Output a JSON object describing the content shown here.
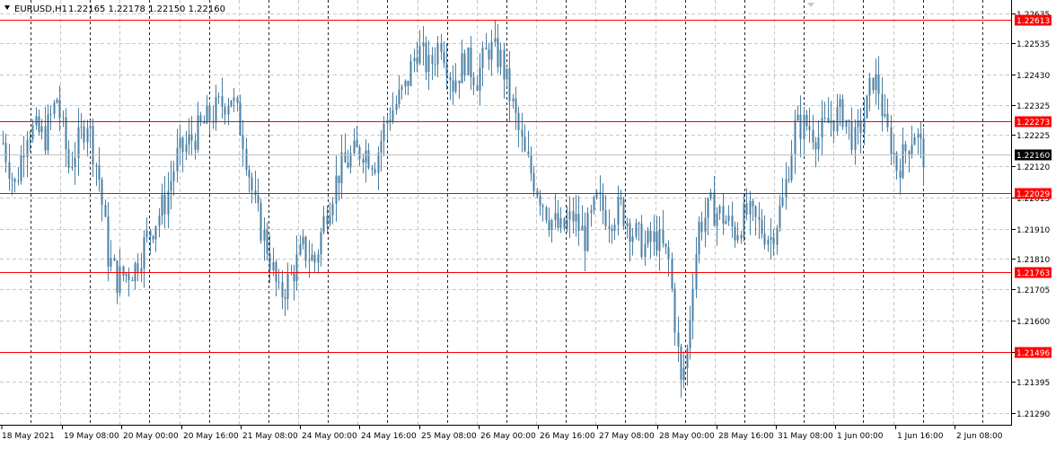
{
  "header": {
    "symbol": "EURUSD,H1",
    "ohlc": "1.22165 1.22178 1.22150 1.22160"
  },
  "chart_data": {
    "type": "candlestick",
    "symbol": "EURUSD",
    "timeframe": "H1",
    "ylim": [
      1.2125,
      1.2268
    ],
    "y_ticks": [
      "1.22635",
      "1.22535",
      "1.22430",
      "1.22325",
      "1.22225",
      "1.22120",
      "1.22015",
      "1.21910",
      "1.21810",
      "1.21705",
      "1.21600",
      "1.21495",
      "1.21395",
      "1.21290"
    ],
    "x_labels": [
      "18 May 2021",
      "19 May 08:00",
      "20 May 00:00",
      "20 May 16:00",
      "21 May 08:00",
      "24 May 00:00",
      "24 May 16:00",
      "25 May 08:00",
      "26 May 00:00",
      "26 May 16:00",
      "27 May 08:00",
      "28 May 00:00",
      "28 May 16:00",
      "31 May 08:00",
      "1 Jun 00:00",
      "1 Jun 16:00",
      "2 Jun 08:00"
    ],
    "horizontal_lines": [
      {
        "label": "1.22613",
        "value": 1.22613,
        "color": "#ff0000"
      },
      {
        "label": "1.22273",
        "value": 1.22273,
        "color": "#ff0000"
      },
      {
        "label": "1.22029",
        "value": 1.22029,
        "color": "#ff0000"
      },
      {
        "label": "1.21763",
        "value": 1.21763,
        "color": "#ff0000"
      },
      {
        "label": "1.21496",
        "value": 1.21496,
        "color": "#ff0000"
      }
    ],
    "current_price": {
      "label": "1.22160",
      "value": 1.2216
    },
    "candle_color": "#4a7fa3",
    "close_path": [
      [
        0,
        1.222
      ],
      [
        4,
        1.2205
      ],
      [
        8,
        1.2225
      ],
      [
        14,
        1.2222
      ],
      [
        18,
        1.2235
      ],
      [
        22,
        1.2212
      ],
      [
        28,
        1.2228
      ],
      [
        32,
        1.2208
      ],
      [
        35,
        1.2182
      ],
      [
        38,
        1.2174
      ],
      [
        44,
        1.2178
      ],
      [
        48,
        1.2188
      ],
      [
        54,
        1.22
      ],
      [
        58,
        1.2215
      ],
      [
        66,
        1.2225
      ],
      [
        72,
        1.2232
      ],
      [
        76,
        1.2236
      ],
      [
        80,
        1.2222
      ],
      [
        84,
        1.2198
      ],
      [
        88,
        1.2185
      ],
      [
        92,
        1.2168
      ],
      [
        96,
        1.2175
      ],
      [
        100,
        1.2184
      ],
      [
        104,
        1.218
      ],
      [
        108,
        1.2198
      ],
      [
        112,
        1.221
      ],
      [
        116,
        1.2215
      ],
      [
        120,
        1.2218
      ],
      [
        124,
        1.2214
      ],
      [
        128,
        1.2228
      ],
      [
        134,
        1.2238
      ],
      [
        138,
        1.2252
      ],
      [
        142,
        1.2245
      ],
      [
        146,
        1.2255
      ],
      [
        150,
        1.224
      ],
      [
        154,
        1.2248
      ],
      [
        158,
        1.2242
      ],
      [
        162,
        1.2252
      ],
      [
        166,
        1.2248
      ],
      [
        170,
        1.2232
      ],
      [
        174,
        1.2215
      ],
      [
        178,
        1.2205
      ],
      [
        182,
        1.2195
      ],
      [
        186,
        1.219
      ],
      [
        190,
        1.2195
      ],
      [
        194,
        1.2188
      ],
      [
        198,
        1.22
      ],
      [
        202,
        1.2195
      ],
      [
        206,
        1.2198
      ],
      [
        210,
        1.219
      ],
      [
        214,
        1.2185
      ],
      [
        218,
        1.2188
      ],
      [
        222,
        1.218
      ],
      [
        224,
        1.216
      ],
      [
        226,
        1.2138
      ],
      [
        228,
        1.215
      ],
      [
        230,
        1.2175
      ],
      [
        232,
        1.2192
      ],
      [
        236,
        1.2198
      ],
      [
        240,
        1.2195
      ],
      [
        244,
        1.219
      ],
      [
        248,
        1.2196
      ],
      [
        252,
        1.2192
      ],
      [
        256,
        1.2188
      ],
      [
        260,
        1.22
      ],
      [
        264,
        1.2225
      ],
      [
        268,
        1.2226
      ],
      [
        272,
        1.2222
      ],
      [
        276,
        1.2228
      ],
      [
        280,
        1.223
      ],
      [
        284,
        1.222
      ],
      [
        288,
        1.2232
      ],
      [
        290,
        1.2242
      ],
      [
        292,
        1.2238
      ],
      [
        294,
        1.2225
      ],
      [
        296,
        1.222
      ],
      [
        298,
        1.2212
      ],
      [
        300,
        1.2215
      ],
      [
        302,
        1.222
      ],
      [
        304,
        1.2224
      ],
      [
        306,
        1.2218
      ],
      [
        307,
        1.2216
      ]
    ]
  }
}
